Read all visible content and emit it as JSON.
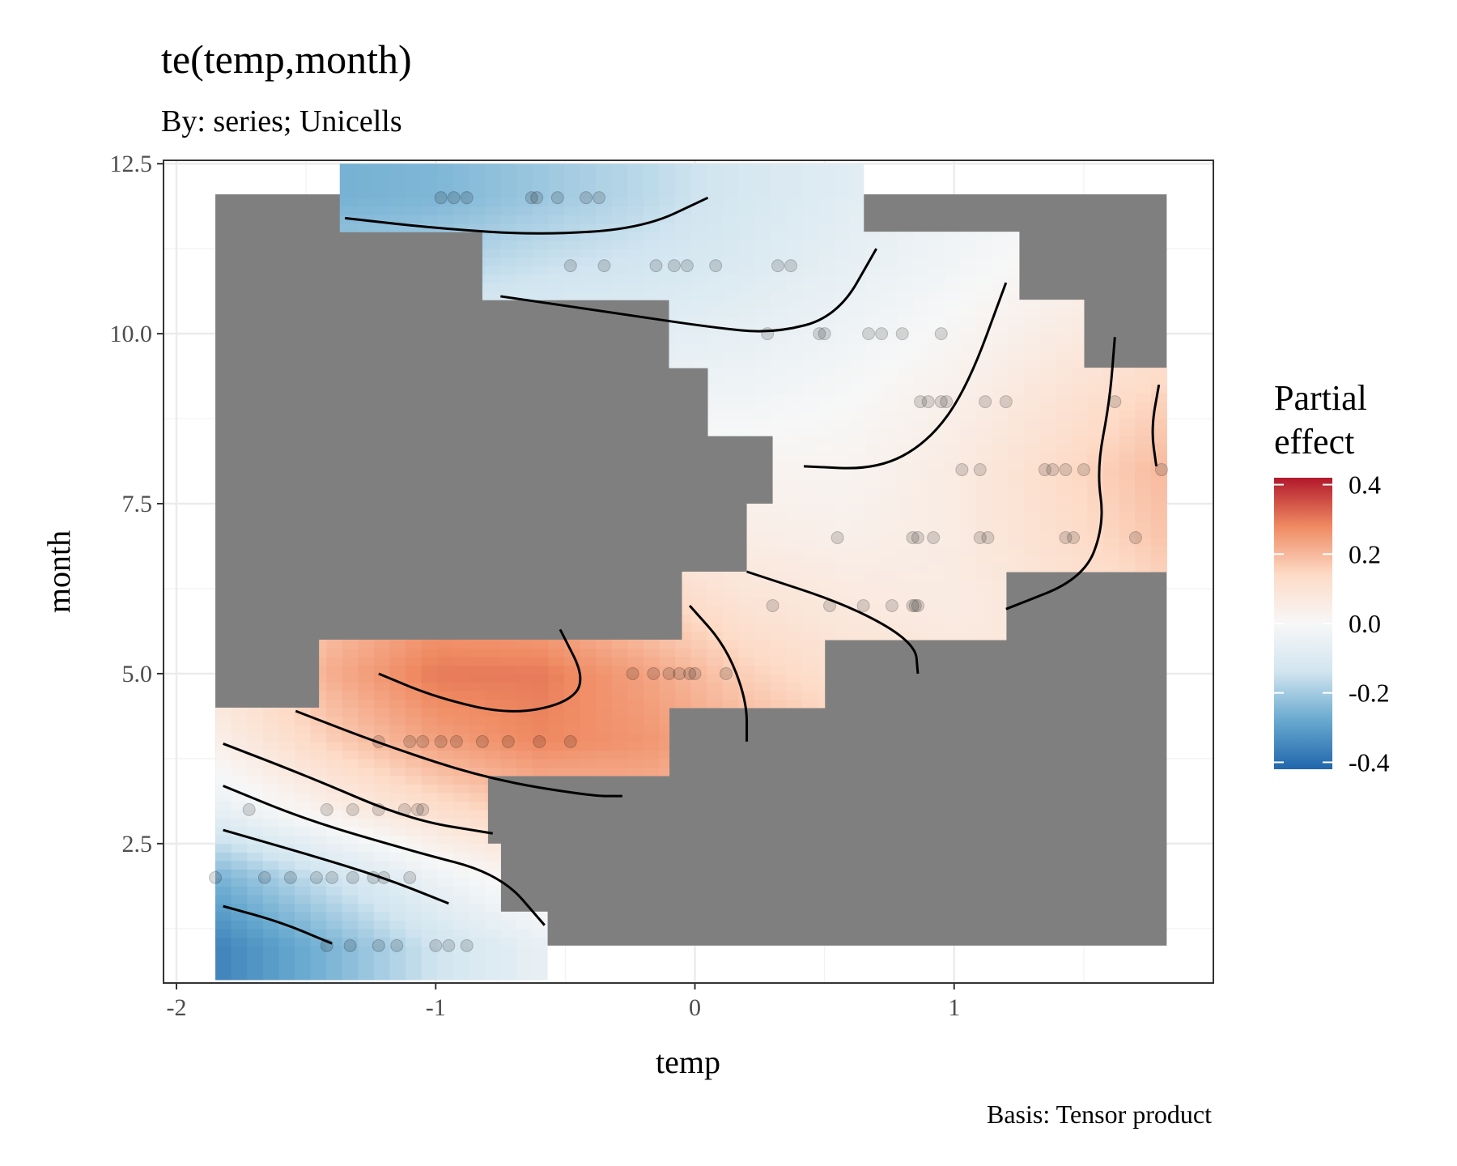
{
  "chart_data": {
    "type": "heatmap",
    "title": "te(temp,month)",
    "subtitle": "By: series; Unicells",
    "xlabel": "temp",
    "ylabel": "month",
    "caption": "Basis: Tensor product",
    "xlim": [
      -2.05,
      2.0
    ],
    "ylim": [
      0.45,
      12.55
    ],
    "x_ticks": [
      -2,
      -1,
      0,
      1
    ],
    "x_tick_labels": [
      "-2",
      "-1",
      "0",
      "1"
    ],
    "y_ticks": [
      2.5,
      5.0,
      7.5,
      10.0,
      12.5
    ],
    "y_tick_labels": [
      "2.5",
      "5.0",
      "7.5",
      "10.0",
      "12.5"
    ],
    "grid": true,
    "legend": {
      "title_lines": [
        "Partial",
        "effect"
      ],
      "placement": "right",
      "limits": [
        -0.42,
        0.42
      ],
      "ticks": [
        0.4,
        0.2,
        0.0,
        -0.2,
        -0.4
      ],
      "tick_labels": [
        "0.4",
        "0.2",
        "0.0",
        "-0.2",
        "-0.4"
      ],
      "colors": [
        "#2166ac",
        "#67a9cf",
        "#d1e5f0",
        "#f7f7f7",
        "#fddbc7",
        "#ef8a62",
        "#b2182b"
      ]
    },
    "masked_color": "#7f7f7f",
    "effect_region": [
      {
        "month": 1,
        "temp_min": -1.85,
        "temp_max": -0.57
      },
      {
        "month": 2,
        "temp_min": -1.85,
        "temp_max": -0.75
      },
      {
        "month": 3,
        "temp_min": -1.85,
        "temp_max": -0.8
      },
      {
        "month": 4,
        "temp_min": -1.85,
        "temp_max": -0.1
      },
      {
        "month": 5,
        "temp_min": -1.45,
        "temp_max": 0.5
      },
      {
        "month": 6,
        "temp_min": -0.05,
        "temp_max": 1.2
      },
      {
        "month": 7,
        "temp_min": 0.2,
        "temp_max": 1.82
      },
      {
        "month": 8,
        "temp_min": 0.3,
        "temp_max": 1.82
      },
      {
        "month": 9,
        "temp_min": 0.05,
        "temp_max": 1.82
      },
      {
        "month": 10,
        "temp_min": -0.1,
        "temp_max": 1.5
      },
      {
        "month": 11,
        "temp_min": -0.82,
        "temp_max": 1.25
      },
      {
        "month": 12,
        "temp_min": -1.37,
        "temp_max": 0.65
      }
    ],
    "surface": {
      "temp": [
        -1.85,
        -1.4,
        -1.0,
        -0.6,
        -0.2,
        0.2,
        0.6,
        1.0,
        1.4,
        1.82
      ],
      "month": [
        1,
        2,
        3,
        4,
        5,
        6,
        7,
        8,
        9,
        10,
        11,
        12
      ],
      "values": [
        [
          -0.36,
          -0.25,
          -0.14,
          -0.06,
          0.0,
          0.03,
          0.05,
          0.06,
          0.07,
          0.08
        ],
        [
          -0.26,
          -0.14,
          -0.04,
          0.04,
          0.08,
          0.1,
          0.1,
          0.1,
          0.1,
          0.1
        ],
        [
          -0.06,
          0.04,
          0.12,
          0.18,
          0.2,
          0.18,
          0.14,
          0.11,
          0.1,
          0.1
        ],
        [
          0.04,
          0.16,
          0.24,
          0.28,
          0.26,
          0.21,
          0.16,
          0.12,
          0.1,
          0.1
        ],
        [
          0.1,
          0.22,
          0.3,
          0.3,
          0.24,
          0.16,
          0.11,
          0.08,
          0.08,
          0.09
        ],
        [
          0.08,
          0.18,
          0.24,
          0.22,
          0.16,
          0.1,
          0.07,
          0.06,
          0.09,
          0.14
        ],
        [
          0.03,
          0.1,
          0.14,
          0.12,
          0.08,
          0.05,
          0.04,
          0.06,
          0.12,
          0.18
        ],
        [
          -0.02,
          0.03,
          0.06,
          0.05,
          0.03,
          0.02,
          0.02,
          0.06,
          0.13,
          0.2
        ],
        [
          -0.06,
          -0.04,
          -0.03,
          -0.03,
          -0.03,
          -0.02,
          0.0,
          0.04,
          0.1,
          0.16
        ],
        [
          -0.12,
          -0.11,
          -0.1,
          -0.09,
          -0.08,
          -0.06,
          -0.03,
          0.01,
          0.06,
          0.1
        ],
        [
          -0.2,
          -0.2,
          -0.18,
          -0.15,
          -0.13,
          -0.1,
          -0.06,
          -0.02,
          0.02,
          0.05
        ],
        [
          -0.26,
          -0.26,
          -0.25,
          -0.21,
          -0.17,
          -0.12,
          -0.08,
          -0.04,
          -0.01,
          0.02
        ]
      ]
    },
    "contours": [
      [
        [
          -1.82,
          1.58
        ],
        [
          -1.6,
          1.35
        ],
        [
          -1.4,
          1.03
        ]
      ],
      [
        [
          -1.82,
          2.7
        ],
        [
          -1.5,
          2.35
        ],
        [
          -1.2,
          2.0
        ],
        [
          -0.95,
          1.62
        ]
      ],
      [
        [
          -1.82,
          3.35
        ],
        [
          -1.5,
          2.85
        ],
        [
          -1.1,
          2.4
        ],
        [
          -0.75,
          2.05
        ],
        [
          -0.58,
          1.3
        ]
      ],
      [
        [
          -1.82,
          3.97
        ],
        [
          -1.5,
          3.5
        ],
        [
          -1.1,
          2.85
        ],
        [
          -0.78,
          2.65
        ]
      ],
      [
        [
          -1.54,
          4.45
        ],
        [
          -1.2,
          3.95
        ],
        [
          -0.8,
          3.45
        ],
        [
          -0.4,
          3.2
        ],
        [
          -0.28,
          3.2
        ]
      ],
      [
        [
          -1.22,
          5.0
        ],
        [
          -1.0,
          4.65
        ],
        [
          -0.72,
          4.4
        ],
        [
          -0.5,
          4.55
        ],
        [
          -0.42,
          4.9
        ],
        [
          -0.52,
          5.65
        ]
      ],
      [
        [
          -0.02,
          6.0
        ],
        [
          0.12,
          5.4
        ],
        [
          0.2,
          4.6
        ],
        [
          0.2,
          4.0
        ]
      ],
      [
        [
          0.2,
          6.5
        ],
        [
          0.6,
          6.0
        ],
        [
          0.85,
          5.45
        ],
        [
          0.86,
          5.0
        ]
      ],
      [
        [
          1.2,
          5.95
        ],
        [
          1.5,
          6.4
        ],
        [
          1.58,
          7.2
        ],
        [
          1.55,
          8.0
        ],
        [
          1.6,
          9.0
        ],
        [
          1.62,
          9.95
        ]
      ],
      [
        [
          1.78,
          8.05
        ],
        [
          1.76,
          8.6
        ],
        [
          1.79,
          9.25
        ]
      ],
      [
        [
          0.42,
          8.05
        ],
        [
          0.7,
          8.0
        ],
        [
          0.9,
          8.4
        ],
        [
          1.05,
          9.2
        ],
        [
          1.2,
          10.75
        ]
      ],
      [
        [
          -0.75,
          10.55
        ],
        [
          -0.3,
          10.3
        ],
        [
          0.05,
          10.1
        ],
        [
          0.3,
          10.0
        ],
        [
          0.55,
          10.25
        ],
        [
          0.7,
          11.25
        ]
      ],
      [
        [
          -1.35,
          11.7
        ],
        [
          -1.0,
          11.55
        ],
        [
          -0.6,
          11.45
        ],
        [
          -0.2,
          11.55
        ],
        [
          0.05,
          12.0
        ]
      ]
    ],
    "observations": [
      [
        -1.42,
        1
      ],
      [
        -1.33,
        1
      ],
      [
        -1.22,
        1
      ],
      [
        -1.15,
        1
      ],
      [
        -1.0,
        1
      ],
      [
        -0.95,
        1
      ],
      [
        -0.88,
        1
      ],
      [
        -1.85,
        2
      ],
      [
        -1.66,
        2
      ],
      [
        -1.56,
        2
      ],
      [
        -1.46,
        2
      ],
      [
        -1.4,
        2
      ],
      [
        -1.32,
        2
      ],
      [
        -1.24,
        2
      ],
      [
        -1.2,
        2
      ],
      [
        -1.1,
        2
      ],
      [
        -1.72,
        3
      ],
      [
        -1.42,
        3
      ],
      [
        -1.32,
        3
      ],
      [
        -1.22,
        3
      ],
      [
        -1.12,
        3
      ],
      [
        -1.07,
        3
      ],
      [
        -1.05,
        3
      ],
      [
        -1.22,
        4
      ],
      [
        -1.1,
        4
      ],
      [
        -1.05,
        4
      ],
      [
        -0.98,
        4
      ],
      [
        -0.92,
        4
      ],
      [
        -0.82,
        4
      ],
      [
        -0.72,
        4
      ],
      [
        -0.6,
        4
      ],
      [
        -0.48,
        4
      ],
      [
        -0.24,
        5
      ],
      [
        -0.16,
        5
      ],
      [
        -0.1,
        5
      ],
      [
        -0.06,
        5
      ],
      [
        -0.02,
        5
      ],
      [
        0.0,
        5
      ],
      [
        0.12,
        5
      ],
      [
        0.3,
        6
      ],
      [
        0.52,
        6
      ],
      [
        0.65,
        6
      ],
      [
        0.76,
        6
      ],
      [
        0.84,
        6
      ],
      [
        0.85,
        6
      ],
      [
        0.86,
        6
      ],
      [
        0.55,
        7
      ],
      [
        0.84,
        7
      ],
      [
        0.86,
        7
      ],
      [
        0.92,
        7
      ],
      [
        1.1,
        7
      ],
      [
        1.13,
        7
      ],
      [
        1.43,
        7
      ],
      [
        1.46,
        7
      ],
      [
        1.7,
        7
      ],
      [
        1.03,
        8
      ],
      [
        1.1,
        8
      ],
      [
        1.35,
        8
      ],
      [
        1.38,
        8
      ],
      [
        1.43,
        8
      ],
      [
        1.5,
        8
      ],
      [
        1.8,
        8
      ],
      [
        0.87,
        9
      ],
      [
        0.9,
        9
      ],
      [
        0.95,
        9
      ],
      [
        0.97,
        9
      ],
      [
        1.12,
        9
      ],
      [
        1.2,
        9
      ],
      [
        1.62,
        9
      ],
      [
        0.28,
        10
      ],
      [
        0.48,
        10
      ],
      [
        0.5,
        10
      ],
      [
        0.67,
        10
      ],
      [
        0.72,
        10
      ],
      [
        0.8,
        10
      ],
      [
        0.95,
        10
      ],
      [
        -0.48,
        11
      ],
      [
        -0.35,
        11
      ],
      [
        -0.15,
        11
      ],
      [
        -0.08,
        11
      ],
      [
        -0.03,
        11
      ],
      [
        0.08,
        11
      ],
      [
        0.32,
        11
      ],
      [
        0.37,
        11
      ],
      [
        -0.98,
        12
      ],
      [
        -0.93,
        12
      ],
      [
        -0.88,
        12
      ],
      [
        -0.63,
        12
      ],
      [
        -0.61,
        12
      ],
      [
        -0.53,
        12
      ],
      [
        -0.42,
        12
      ],
      [
        -0.37,
        12
      ]
    ]
  }
}
